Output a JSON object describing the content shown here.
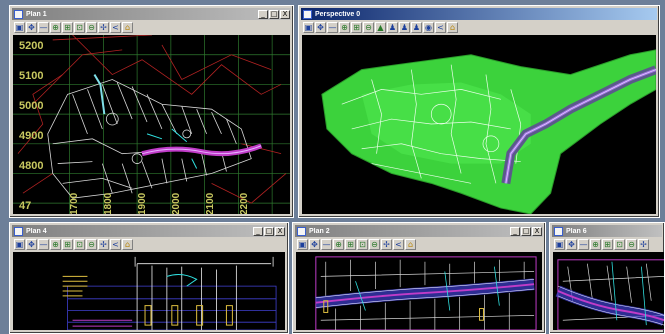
{
  "windows": {
    "plan1": {
      "title": "Plan 1"
    },
    "persp": {
      "title": "Perspective 0"
    },
    "plan4": {
      "title": "Plan 4"
    },
    "plan2": {
      "title": "Plan 2"
    },
    "plan6": {
      "title": "Plan 6"
    }
  },
  "window_buttons": {
    "minimize": "_",
    "maximize": "□",
    "close": "X"
  },
  "toolbar_icons": [
    "save-icon",
    "move-icon",
    "line-icon",
    "zoom-icon",
    "zoom-window-icon",
    "zoom-extent-icon",
    "zoom-out-icon",
    "pan-icon",
    "back-icon",
    "lock-icon"
  ],
  "toolbar_glyphs": {
    "save": "▣",
    "move": "✥",
    "line": "—",
    "zoom": "⊕",
    "zoomwin": "⊞",
    "zoomext": "⊡",
    "zoomout": "⊖",
    "pan": "✢",
    "back": "<",
    "lock": "⌂",
    "car": "▲",
    "people": "♟",
    "eye": "◉"
  },
  "plan1_axis": {
    "y_labels": [
      "5200",
      "5100",
      "5000",
      "4900",
      "4800",
      "47"
    ],
    "x_labels": [
      "1700",
      "1800",
      "1900",
      "2000",
      "2100",
      "2200"
    ]
  },
  "colors": {
    "title_active": "#0a246a",
    "surface": "#3cd23c",
    "alignment": "#c03cc8",
    "grid": "#2f7a2f",
    "boundary": "#b22222"
  }
}
